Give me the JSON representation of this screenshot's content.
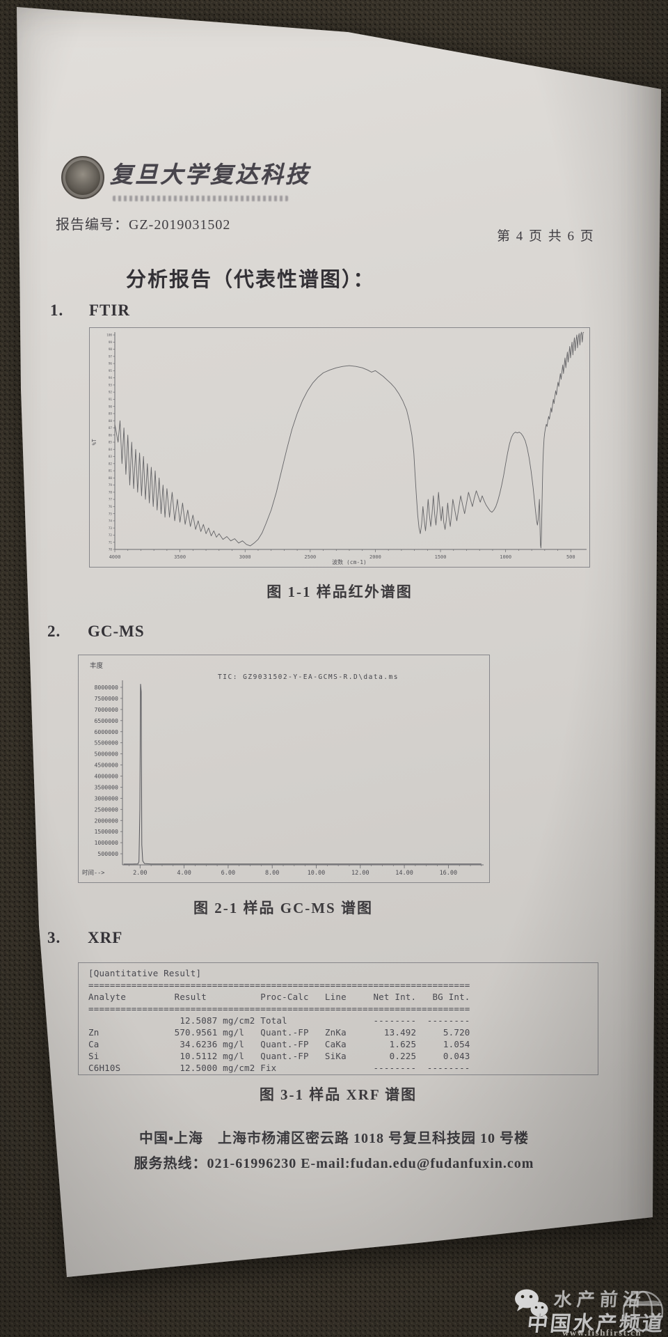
{
  "header": {
    "brand": "复旦大学复达科技",
    "report_no": "报告编号：GZ-2019031502",
    "page_no": "第 4 页 共 6 页",
    "title": "分析报告（代表性谱图）："
  },
  "sections": [
    {
      "no": "1.",
      "name": "FTIR",
      "caption": "图 1-1 样品红外谱图"
    },
    {
      "no": "2.",
      "name": "GC-MS",
      "caption": "图 2-1 样品 GC-MS 谱图"
    },
    {
      "no": "3.",
      "name": "XRF",
      "caption": "图 3-1 样品 XRF 谱图"
    }
  ],
  "footer": {
    "line1": "中国▪上海　上海市杨浦区密云路 1018 号复旦科技园 10 号楼",
    "line2": "服务热线：021-61996230 E-mail:fudan.edu@fudanfuxin.com"
  },
  "watermark": {
    "icon1": "wechat-icon",
    "icon2": "globe-icon",
    "line1": "水产前沿",
    "line2": "中国水产频道",
    "url": "www.fishfirst.cn",
    "text_color": "#ffffff"
  },
  "chart_data": [
    {
      "type": "line",
      "name": "FTIR spectrum",
      "xlabel": "波数 (cm-1)",
      "ylabel": "%T",
      "xticks": [
        4000,
        3500,
        3000,
        2500,
        2000,
        1500,
        1000,
        500
      ],
      "xlim": [
        4000,
        400
      ],
      "ylim": [
        70,
        100
      ],
      "ytick_step": 1,
      "line_color": "#646467",
      "points": [
        [
          4000,
          87.5
        ],
        [
          3975,
          85
        ],
        [
          3960,
          88
        ],
        [
          3945,
          82
        ],
        [
          3930,
          87
        ],
        [
          3915,
          80.5
        ],
        [
          3900,
          86
        ],
        [
          3885,
          79
        ],
        [
          3870,
          85
        ],
        [
          3855,
          78.5
        ],
        [
          3840,
          84
        ],
        [
          3825,
          78
        ],
        [
          3810,
          83.5
        ],
        [
          3795,
          77.5
        ],
        [
          3780,
          83
        ],
        [
          3765,
          77
        ],
        [
          3750,
          82
        ],
        [
          3735,
          76.5
        ],
        [
          3720,
          81.5
        ],
        [
          3705,
          76
        ],
        [
          3690,
          81
        ],
        [
          3675,
          75.5
        ],
        [
          3660,
          80
        ],
        [
          3645,
          75
        ],
        [
          3630,
          79
        ],
        [
          3615,
          74.5
        ],
        [
          3600,
          78.5
        ],
        [
          3580,
          74.5
        ],
        [
          3560,
          78
        ],
        [
          3540,
          74
        ],
        [
          3520,
          77
        ],
        [
          3500,
          73.8
        ],
        [
          3480,
          76.5
        ],
        [
          3460,
          73.5
        ],
        [
          3440,
          75.5
        ],
        [
          3420,
          73.2
        ],
        [
          3400,
          74.8
        ],
        [
          3380,
          72.8
        ],
        [
          3360,
          74
        ],
        [
          3340,
          72.5
        ],
        [
          3320,
          73.5
        ],
        [
          3300,
          72.2
        ],
        [
          3280,
          73
        ],
        [
          3260,
          71.9
        ],
        [
          3240,
          72.6
        ],
        [
          3220,
          71.7
        ],
        [
          3200,
          72.2
        ],
        [
          3170,
          71.4
        ],
        [
          3140,
          71.8
        ],
        [
          3110,
          71.2
        ],
        [
          3080,
          71.5
        ],
        [
          3050,
          70.9
        ],
        [
          3020,
          71.2
        ],
        [
          2990,
          70.7
        ],
        [
          2960,
          70.5
        ],
        [
          2930,
          70.9
        ],
        [
          2900,
          71.4
        ],
        [
          2870,
          72.3
        ],
        [
          2840,
          73.6
        ],
        [
          2800,
          75.5
        ],
        [
          2760,
          78
        ],
        [
          2720,
          81
        ],
        [
          2680,
          84
        ],
        [
          2640,
          86.8
        ],
        [
          2600,
          89
        ],
        [
          2560,
          90.8
        ],
        [
          2520,
          92.2
        ],
        [
          2480,
          93.3
        ],
        [
          2440,
          94.1
        ],
        [
          2400,
          94.7
        ],
        [
          2350,
          95.1
        ],
        [
          2300,
          95.4
        ],
        [
          2250,
          95.6
        ],
        [
          2200,
          95.7
        ],
        [
          2150,
          95.6
        ],
        [
          2100,
          95.4
        ],
        [
          2060,
          95.1
        ],
        [
          2030,
          94.8
        ],
        [
          2000,
          95
        ],
        [
          1970,
          94.6
        ],
        [
          1940,
          94.2
        ],
        [
          1910,
          93.7
        ],
        [
          1880,
          93.2
        ],
        [
          1850,
          92.6
        ],
        [
          1820,
          91.8
        ],
        [
          1790,
          90.8
        ],
        [
          1760,
          89.5
        ],
        [
          1740,
          88
        ],
        [
          1720,
          86
        ],
        [
          1705,
          83.5
        ],
        [
          1695,
          80.5
        ],
        [
          1685,
          77.5
        ],
        [
          1675,
          74.8
        ],
        [
          1665,
          73
        ],
        [
          1655,
          72.2
        ],
        [
          1645,
          73.5
        ],
        [
          1635,
          76
        ],
        [
          1625,
          74
        ],
        [
          1615,
          72.6
        ],
        [
          1605,
          74.5
        ],
        [
          1595,
          77
        ],
        [
          1585,
          74.8
        ],
        [
          1575,
          73.2
        ],
        [
          1565,
          75
        ],
        [
          1555,
          77.5
        ],
        [
          1545,
          75
        ],
        [
          1535,
          73.4
        ],
        [
          1525,
          75.5
        ],
        [
          1515,
          78
        ],
        [
          1505,
          75.8
        ],
        [
          1495,
          74
        ],
        [
          1485,
          76
        ],
        [
          1475,
          73.8
        ],
        [
          1465,
          72.8
        ],
        [
          1455,
          74.2
        ],
        [
          1445,
          76.5
        ],
        [
          1435,
          74.5
        ],
        [
          1425,
          73.2
        ],
        [
          1415,
          75
        ],
        [
          1405,
          77
        ],
        [
          1390,
          75.5
        ],
        [
          1375,
          74
        ],
        [
          1360,
          75.8
        ],
        [
          1345,
          77.5
        ],
        [
          1330,
          76.2
        ],
        [
          1315,
          75
        ],
        [
          1300,
          76.5
        ],
        [
          1285,
          78
        ],
        [
          1270,
          77
        ],
        [
          1255,
          76
        ],
        [
          1240,
          77.2
        ],
        [
          1225,
          78.2
        ],
        [
          1210,
          77.4
        ],
        [
          1195,
          76.6
        ],
        [
          1180,
          77.5
        ],
        [
          1165,
          76.8
        ],
        [
          1150,
          76.2
        ],
        [
          1135,
          75.8
        ],
        [
          1120,
          75.4
        ],
        [
          1105,
          75.2
        ],
        [
          1090,
          75.5
        ],
        [
          1075,
          76
        ],
        [
          1060,
          76.8
        ],
        [
          1045,
          77.8
        ],
        [
          1030,
          79
        ],
        [
          1015,
          80.4
        ],
        [
          1000,
          82
        ],
        [
          985,
          83.5
        ],
        [
          970,
          84.8
        ],
        [
          955,
          85.7
        ],
        [
          940,
          86.2
        ],
        [
          925,
          86.4
        ],
        [
          910,
          86.3
        ],
        [
          895,
          86.4
        ],
        [
          880,
          86.2
        ],
        [
          865,
          85.8
        ],
        [
          850,
          85.2
        ],
        [
          835,
          84.2
        ],
        [
          820,
          82.8
        ],
        [
          805,
          81
        ],
        [
          790,
          78.8
        ],
        [
          780,
          77
        ],
        [
          770,
          75.3
        ],
        [
          762,
          74
        ],
        [
          756,
          73.4
        ],
        [
          750,
          74.2
        ],
        [
          745,
          75.8
        ],
        [
          741,
          77
        ],
        [
          738,
          75
        ],
        [
          735,
          72
        ],
        [
          732,
          70.6
        ],
        [
          729,
          70.2
        ],
        [
          726,
          71.5
        ],
        [
          722,
          75
        ],
        [
          718,
          79
        ],
        [
          714,
          82
        ],
        [
          710,
          84
        ],
        [
          705,
          85.5
        ],
        [
          700,
          86.3
        ],
        [
          694,
          87
        ],
        [
          688,
          87.5
        ],
        [
          682,
          87.2
        ],
        [
          676,
          88
        ],
        [
          670,
          88.6
        ],
        [
          664,
          88.2
        ],
        [
          658,
          89
        ],
        [
          652,
          89.8
        ],
        [
          646,
          89.2
        ],
        [
          640,
          90.2
        ],
        [
          634,
          91
        ],
        [
          628,
          90.4
        ],
        [
          622,
          91.4
        ],
        [
          616,
          92.2
        ],
        [
          610,
          91.6
        ],
        [
          604,
          92.6
        ],
        [
          598,
          93.4
        ],
        [
          592,
          92.8
        ],
        [
          586,
          93.8
        ],
        [
          580,
          94.6
        ],
        [
          574,
          93.8
        ],
        [
          568,
          94.8
        ],
        [
          562,
          95.8
        ],
        [
          556,
          94.6
        ],
        [
          550,
          95.8
        ],
        [
          544,
          96.8
        ],
        [
          538,
          95.4
        ],
        [
          532,
          96.6
        ],
        [
          526,
          97.6
        ],
        [
          520,
          96.2
        ],
        [
          514,
          97.4
        ],
        [
          508,
          98.4
        ],
        [
          502,
          96.8
        ],
        [
          496,
          98
        ],
        [
          490,
          99
        ],
        [
          484,
          97.2
        ],
        [
          478,
          98.6
        ],
        [
          472,
          99.6
        ],
        [
          466,
          97.8
        ],
        [
          460,
          99.2
        ],
        [
          454,
          100
        ],
        [
          448,
          98.2
        ],
        [
          442,
          99.6
        ],
        [
          436,
          100.2
        ],
        [
          430,
          98.6
        ],
        [
          424,
          100
        ],
        [
          418,
          100.5
        ],
        [
          412,
          99
        ],
        [
          406,
          100.3
        ],
        [
          400,
          100.8
        ]
      ]
    },
    {
      "type": "line",
      "name": "GC-MS total ion chromatogram",
      "title": "TIC: GZ9031502-Y-EA-GCMS-R.D\\data.ms",
      "ylabel": "丰度",
      "xlabel": "时间-->",
      "yticks": [
        "8000000",
        "7500000",
        "7000000",
        "6500000",
        "6000000",
        "5500000",
        "5000000",
        "4500000",
        "4000000",
        "3500000",
        "3000000",
        "2500000",
        "2000000",
        "1500000",
        "1000000",
        "500000"
      ],
      "xticks": [
        "2.00",
        "4.00",
        "6.00",
        "8.00",
        "10.00",
        "12.00",
        "14.00",
        "16.00"
      ],
      "xlim": [
        1.2,
        17.6
      ],
      "ylim": [
        0,
        8000000
      ],
      "line_color": "#55555a",
      "points": [
        [
          1.25,
          35000
        ],
        [
          1.7,
          38000
        ],
        [
          1.9,
          45000
        ],
        [
          1.95,
          150000
        ],
        [
          1.99,
          2500000
        ],
        [
          2.02,
          8150000
        ],
        [
          2.05,
          7800000
        ],
        [
          2.08,
          900000
        ],
        [
          2.12,
          180000
        ],
        [
          2.2,
          60000
        ],
        [
          2.5,
          40000
        ],
        [
          3,
          38000
        ],
        [
          5,
          38000
        ],
        [
          8,
          40000
        ],
        [
          11,
          38000
        ],
        [
          14,
          40000
        ],
        [
          17.5,
          38000
        ]
      ]
    },
    {
      "type": "table",
      "name": "XRF quantitative result",
      "title": "[Quantitative Result]",
      "columns": [
        "Analyte",
        "Result",
        "Proc-Calc",
        "Line",
        "Net Int.",
        "BG Int."
      ],
      "rows": [
        [
          "",
          "12.5087 mg/cm2",
          "Total",
          "",
          "--------",
          "--------"
        ],
        [
          "Zn",
          "570.9561 mg/l",
          "Quant.-FP",
          "ZnKa",
          "13.492",
          "5.720"
        ],
        [
          "Ca",
          "34.6236 mg/l",
          "Quant.-FP",
          "CaKa",
          "1.625",
          "1.054"
        ],
        [
          "Si",
          "10.5112 mg/l",
          "Quant.-FP",
          "SiKa",
          "0.225",
          "0.043"
        ],
        [
          "C6H10S",
          "12.5000 mg/cm2",
          "Fix",
          "",
          "--------",
          "--------"
        ]
      ]
    }
  ]
}
